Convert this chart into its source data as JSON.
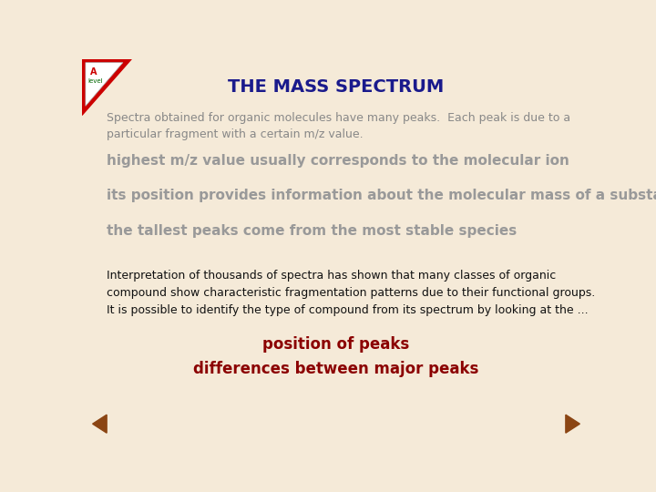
{
  "background_color": "#f5ead8",
  "title": "THE MASS SPECTRUM",
  "title_color": "#1a1a8c",
  "title_fontsize": 14,
  "body_text_1": "Spectra obtained for organic molecules have many peaks.  Each peak is due to a\nparticular fragment with a certain m/z value.",
  "body_text_1_color": "#888888",
  "body_text_1_fontsize": 9,
  "bullet_lines": [
    "highest m/z value usually corresponds to the molecular ion",
    "its position provides information about the molecular mass of a substance",
    "the tallest peaks come from the most stable species"
  ],
  "bullet_color": "#999999",
  "bullet_fontsize": 11,
  "bullet_bold": true,
  "interp_text": "Interpretation of thousands of spectra has shown that many classes of organic\ncompound show characteristic fragmentation patterns due to their functional groups.\nIt is possible to identify the type of compound from its spectrum by looking at the ...",
  "interp_color": "#111111",
  "interp_fontsize": 9,
  "highlight_lines": [
    "position of peaks",
    "differences between major peaks"
  ],
  "highlight_color": "#8b0000",
  "highlight_fontsize": 12,
  "nav_arrow_color": "#8b4513",
  "corner_red": "#cc0000",
  "corner_white": "#ffffff"
}
